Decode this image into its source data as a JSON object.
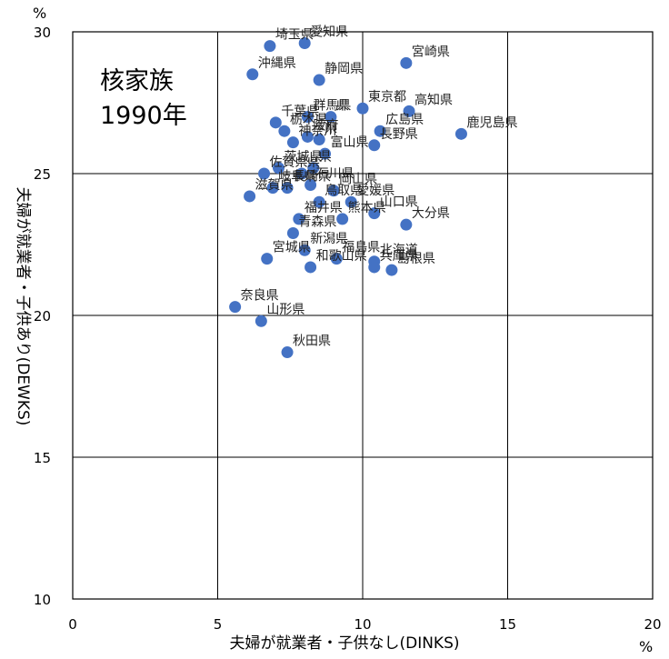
{
  "chart_data": {
    "type": "scatter",
    "title": "核家族\n1990年",
    "xlabel": "夫婦が就業者・子供なし(DINKS)",
    "ylabel": "夫婦が就業者・子供あり(DEWKS)",
    "x_unit": "%",
    "y_unit": "%",
    "xlim": [
      0,
      20
    ],
    "ylim": [
      10,
      30
    ],
    "x_ticks": [
      0,
      5,
      10,
      15,
      20
    ],
    "y_ticks": [
      10,
      15,
      20,
      25,
      30
    ],
    "grid": true,
    "point_color": "#4472C4",
    "points": [
      {
        "label": "埼玉県",
        "x": 6.8,
        "y": 29.5
      },
      {
        "label": "愛知県",
        "x": 8.0,
        "y": 29.6
      },
      {
        "label": "宮崎県",
        "x": 11.5,
        "y": 28.9
      },
      {
        "label": "沖縄県",
        "x": 6.2,
        "y": 28.5
      },
      {
        "label": "静岡県",
        "x": 8.5,
        "y": 28.3
      },
      {
        "label": "東京都",
        "x": 10.0,
        "y": 27.3
      },
      {
        "label": "高知県",
        "x": 11.6,
        "y": 27.2
      },
      {
        "label": "群馬県",
        "x": 8.1,
        "y": 27.0
      },
      {
        "label": "県",
        "x": 8.9,
        "y": 27.0
      },
      {
        "label": "鹿児島県",
        "x": 13.4,
        "y": 26.4
      },
      {
        "label": "千葉県",
        "x": 7.0,
        "y": 26.8
      },
      {
        "label": "広島県",
        "x": 10.6,
        "y": 26.5
      },
      {
        "label": "栃木県",
        "x": 7.3,
        "y": 26.5
      },
      {
        "label": "神奈川",
        "x": 7.6,
        "y": 26.1
      },
      {
        "label": "阪府",
        "x": 8.1,
        "y": 26.3
      },
      {
        "label": "県",
        "x": 8.5,
        "y": 26.2
      },
      {
        "label": "長野県",
        "x": 10.4,
        "y": 26.0
      },
      {
        "label": "茨城県",
        "x": 7.1,
        "y": 25.2
      },
      {
        "label": "富山県",
        "x": 8.7,
        "y": 25.7
      },
      {
        "label": "県",
        "x": 8.3,
        "y": 25.2
      },
      {
        "label": "佐賀県",
        "x": 6.6,
        "y": 25.0
      },
      {
        "label": "県",
        "x": 7.9,
        "y": 25.0
      },
      {
        "label": "滋賀県",
        "x": 6.1,
        "y": 24.2
      },
      {
        "label": "岐阜県",
        "x": 6.9,
        "y": 24.5
      },
      {
        "label": "長崎県",
        "x": 7.4,
        "y": 24.5
      },
      {
        "label": "石川県",
        "x": 8.2,
        "y": 24.6
      },
      {
        "label": "岡山県",
        "x": 9.0,
        "y": 24.4
      },
      {
        "label": "愛媛県",
        "x": 9.6,
        "y": 24.0
      },
      {
        "label": "鳥取県",
        "x": 8.5,
        "y": 24.0
      },
      {
        "label": "山口県",
        "x": 10.4,
        "y": 23.6
      },
      {
        "label": "福井県",
        "x": 7.8,
        "y": 23.4
      },
      {
        "label": "熊本県",
        "x": 9.3,
        "y": 23.4
      },
      {
        "label": "大分県",
        "x": 11.5,
        "y": 23.2
      },
      {
        "label": "青森県",
        "x": 7.6,
        "y": 22.9
      },
      {
        "label": "宮城県",
        "x": 6.7,
        "y": 22.0
      },
      {
        "label": "新潟県",
        "x": 8.0,
        "y": 22.3
      },
      {
        "label": "福島県",
        "x": 9.1,
        "y": 22.0
      },
      {
        "label": "北海道",
        "x": 10.4,
        "y": 21.9
      },
      {
        "label": "兵庫県",
        "x": 10.4,
        "y": 21.7
      },
      {
        "label": "島根県",
        "x": 11.0,
        "y": 21.6
      },
      {
        "label": "和歌山県",
        "x": 8.2,
        "y": 21.7
      },
      {
        "label": "奈良県",
        "x": 5.6,
        "y": 20.3
      },
      {
        "label": "山形県",
        "x": 6.5,
        "y": 19.8
      },
      {
        "label": "秋田県",
        "x": 7.4,
        "y": 18.7
      }
    ]
  }
}
